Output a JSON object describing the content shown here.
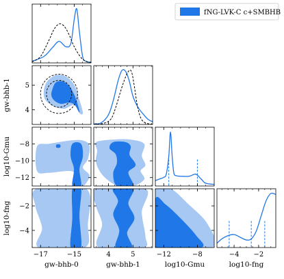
{
  "chart_data": {
    "type": "corner",
    "parameters": [
      "gw-bhb-0",
      "gw-bhb-1",
      "log10-Gmu",
      "log10-fng"
    ],
    "axis_labels": {
      "x": [
        "gw-bhb-0",
        "gw-bhb-1",
        "log10-Gmu",
        "log10-fng"
      ],
      "y": [
        "gw-bhb-1",
        "log10-Gmu",
        "log10-fng"
      ]
    },
    "ranges": [
      [
        -17.5,
        -14.0
      ],
      [
        3.4,
        5.8
      ],
      [
        -13.0,
        -6.0
      ],
      [
        -5.4,
        -0.6
      ]
    ],
    "ticks": [
      [
        -17,
        -15
      ],
      [
        4,
        5
      ],
      [
        -12,
        -8
      ],
      [
        -4,
        -2
      ]
    ],
    "y_ticks": [
      [
        4,
        5
      ],
      [
        -8,
        -10,
        -12
      ],
      [
        -2,
        -4
      ]
    ],
    "legend": {
      "label": "fNG-LVK-C c+SMBHB",
      "color": "#1f77e8",
      "position": "top-right"
    },
    "colors": {
      "primary": "#1f77e8",
      "light": "#a6c8f2",
      "reference": "#000000"
    },
    "marginals": [
      {
        "param": "gw-bhb-0",
        "series": [
          {
            "name": "fNG-LVK-C c+SMBHB",
            "style": "solid",
            "x": [
              -17.5,
              -16.8,
              -16.3,
              -15.9,
              -15.5,
              -15.2,
              -15.0,
              -14.85,
              -14.7,
              -14.5,
              -14.3,
              -14.0
            ],
            "y": [
              0.03,
              0.12,
              0.28,
              0.4,
              0.3,
              0.36,
              0.8,
              1.0,
              0.6,
              0.12,
              0.03,
              0.01
            ]
          },
          {
            "style": "dashed",
            "x": [
              -17.5,
              -17.0,
              -16.5,
              -16.2,
              -15.9,
              -15.6,
              -15.3,
              -15.0,
              -14.6,
              -14.3,
              -14.0
            ],
            "y": [
              0.02,
              0.12,
              0.42,
              0.62,
              0.72,
              0.68,
              0.52,
              0.3,
              0.1,
              0.03,
              0.01
            ]
          }
        ]
      },
      {
        "param": "gw-bhb-1",
        "series": [
          {
            "name": "fNG-LVK-C c+SMBHB",
            "style": "solid",
            "x": [
              3.4,
              3.7,
              4.0,
              4.2,
              4.4,
              4.55,
              4.7,
              4.85,
              5.0,
              5.2,
              5.4,
              5.6,
              5.8
            ],
            "y": [
              0.01,
              0.03,
              0.18,
              0.45,
              0.82,
              1.0,
              0.98,
              0.8,
              0.52,
              0.32,
              0.2,
              0.1,
              0.05
            ]
          },
          {
            "style": "dashed",
            "x": [
              3.4,
              3.8,
              4.1,
              4.3,
              4.5,
              4.7,
              4.85,
              4.95,
              5.05,
              5.2,
              5.4,
              5.8
            ],
            "y": [
              0.0,
              0.02,
              0.1,
              0.32,
              0.62,
              0.88,
              1.0,
              0.96,
              0.72,
              0.3,
              0.06,
              0.0
            ]
          }
        ]
      },
      {
        "param": "log10-Gmu",
        "series": [
          {
            "name": "fNG-LVK-C c+SMBHB",
            "style": "solid",
            "x": [
              -13.0,
              -12.5,
              -12.0,
              -11.7,
              -11.4,
              -11.2,
              -11.0,
              -10.8,
              -10.5,
              -10.0,
              -9.0,
              -8.3,
              -8.0,
              -7.5,
              -7.0,
              -6.0
            ],
            "y": [
              0.1,
              0.13,
              0.16,
              0.22,
              0.55,
              1.0,
              0.55,
              0.24,
              0.19,
              0.18,
              0.18,
              0.22,
              0.2,
              0.12,
              0.05,
              0.03
            ]
          },
          {
            "name": "",
            "style": "intervals",
            "x": [
              -11.4,
              -8.0
            ],
            "y": []
          }
        ]
      },
      {
        "param": "log10-fng",
        "series": [
          {
            "name": "fNG-LVK-C c+SMBHB",
            "style": "solid",
            "x": [
              -5.4,
              -5.0,
              -4.5,
              -4.0,
              -3.5,
              -3.0,
              -2.6,
              -2.2,
              -1.8,
              -1.4,
              -1.0,
              -0.6
            ],
            "y": [
              0.08,
              0.16,
              0.22,
              0.24,
              0.19,
              0.14,
              0.16,
              0.3,
              0.58,
              0.86,
              1.0,
              0.98
            ]
          },
          {
            "name": "",
            "style": "intervals",
            "x": [
              -4.4,
              -2.6,
              -1.5
            ],
            "y": []
          }
        ]
      }
    ],
    "contours": [
      {
        "x": "gw-bhb-0",
        "y": "gw-bhb-1",
        "regions_95": [
          [
            [
              -16.8,
              4.75
            ],
            [
              -16.6,
              5.15
            ],
            [
              -16.1,
              5.4
            ],
            [
              -15.5,
              5.35
            ],
            [
              -15.0,
              5.0
            ],
            [
              -14.75,
              4.5
            ],
            [
              -14.5,
              3.9
            ],
            [
              -14.65,
              3.85
            ],
            [
              -15.0,
              4.2
            ],
            [
              -15.6,
              4.05
            ],
            [
              -16.2,
              4.15
            ],
            [
              -16.7,
              4.4
            ]
          ]
        ],
        "regions_68": [
          [
            [
              -16.3,
              4.8
            ],
            [
              -16.1,
              5.1
            ],
            [
              -15.7,
              5.15
            ],
            [
              -15.3,
              4.95
            ],
            [
              -15.0,
              4.6
            ],
            [
              -14.8,
              4.2
            ],
            [
              -14.7,
              3.9
            ],
            [
              -14.95,
              4.2
            ],
            [
              -15.3,
              4.3
            ],
            [
              -15.8,
              4.25
            ],
            [
              -16.2,
              4.4
            ],
            [
              -16.35,
              4.6
            ]
          ]
        ],
        "reference_68": {
          "center": [
            -15.9,
            4.65
          ],
          "radii": [
            0.75,
            0.55
          ]
        },
        "reference_95": {
          "center": [
            -15.9,
            4.65
          ],
          "radii": [
            1.1,
            0.8
          ]
        }
      },
      {
        "x": "gw-bhb-0",
        "y": "log10-Gmu",
        "regions_95": [
          [
            [
              -17.2,
              -8.3
            ],
            [
              -16.5,
              -8.0
            ],
            [
              -15.2,
              -7.6
            ],
            [
              -14.5,
              -7.6
            ],
            [
              -14.1,
              -8.2
            ],
            [
              -14.2,
              -9.8
            ],
            [
              -14.5,
              -10.8
            ],
            [
              -14.1,
              -11.8
            ],
            [
              -14.5,
              -13.0
            ],
            [
              -14.8,
              -12.0
            ],
            [
              -15.2,
              -11.2
            ],
            [
              -16.5,
              -11.4
            ],
            [
              -17.2,
              -11.2
            ]
          ]
        ],
        "regions_68": [
          [
            [
              -15.1,
              -8.0
            ],
            [
              -14.6,
              -8.0
            ],
            [
              -14.5,
              -9.5
            ],
            [
              -14.7,
              -11.0
            ],
            [
              -14.6,
              -13.0
            ],
            [
              -15.1,
              -13.0
            ],
            [
              -15.0,
              -11.0
            ],
            [
              -15.2,
              -9.5
            ]
          ],
          [
            [
              -16.05,
              -8.1
            ],
            [
              -15.85,
              -8.1
            ],
            [
              -15.85,
              -8.4
            ],
            [
              -16.05,
              -8.4
            ]
          ]
        ]
      },
      {
        "x": "gw-bhb-1",
        "y": "log10-Gmu",
        "regions_95": [
          [
            [
              3.5,
              -7.8
            ],
            [
              4.2,
              -7.5
            ],
            [
              4.9,
              -7.5
            ],
            [
              5.45,
              -8.0
            ],
            [
              5.35,
              -9.4
            ],
            [
              5.5,
              -10.5
            ],
            [
              5.3,
              -11.2
            ],
            [
              5.45,
              -12.2
            ],
            [
              5.0,
              -13.0
            ],
            [
              4.4,
              -13.0
            ],
            [
              3.8,
              -11.8
            ],
            [
              3.5,
              -10.2
            ],
            [
              3.55,
              -8.8
            ]
          ]
        ],
        "regions_68": [
          [
            [
              4.2,
              -7.8
            ],
            [
              4.7,
              -7.8
            ],
            [
              4.9,
              -8.3
            ],
            [
              4.85,
              -9.3
            ],
            [
              5.1,
              -10.5
            ],
            [
              4.8,
              -11.4
            ],
            [
              5.0,
              -13.0
            ],
            [
              4.35,
              -13.0
            ],
            [
              4.2,
              -11.5
            ],
            [
              4.35,
              -10.3
            ],
            [
              4.3,
              -9.2
            ],
            [
              4.05,
              -8.5
            ]
          ]
        ]
      },
      {
        "x": "gw-bhb-0",
        "y": "log10-fng",
        "regions_95": [
          [
            [
              -17.2,
              -0.6
            ],
            [
              -14.3,
              -0.6
            ],
            [
              -14.2,
              -3.5
            ],
            [
              -14.4,
              -5.4
            ],
            [
              -17.1,
              -5.4
            ],
            [
              -16.9,
              -3.8
            ],
            [
              -17.3,
              -2.0
            ]
          ]
        ],
        "regions_68": [
          [
            [
              -15.1,
              -0.6
            ],
            [
              -14.6,
              -0.6
            ],
            [
              -14.7,
              -2.8
            ],
            [
              -14.6,
              -5.4
            ],
            [
              -15.2,
              -5.4
            ],
            [
              -15.1,
              -3.0
            ]
          ]
        ]
      },
      {
        "x": "gw-bhb-1",
        "y": "log10-fng",
        "regions_95": [
          [
            [
              3.5,
              -0.6
            ],
            [
              5.5,
              -0.6
            ],
            [
              5.35,
              -2.5
            ],
            [
              5.5,
              -4.5
            ],
            [
              5.4,
              -5.4
            ],
            [
              3.6,
              -5.4
            ],
            [
              3.75,
              -3.5
            ],
            [
              3.5,
              -2.0
            ]
          ]
        ],
        "regions_68": [
          [
            [
              4.2,
              -0.6
            ],
            [
              5.0,
              -0.6
            ],
            [
              4.8,
              -1.8
            ],
            [
              5.05,
              -3.0
            ],
            [
              4.75,
              -4.2
            ],
            [
              4.95,
              -5.4
            ],
            [
              4.3,
              -5.4
            ],
            [
              4.45,
              -4.0
            ],
            [
              4.2,
              -2.7
            ],
            [
              4.4,
              -1.6
            ]
          ]
        ]
      },
      {
        "x": "log10-Gmu",
        "y": "log10-fng",
        "regions_95": [
          [
            [
              -13.0,
              -0.6
            ],
            [
              -11.2,
              -0.6
            ],
            [
              -9.2,
              -1.8
            ],
            [
              -6.8,
              -3.5
            ],
            [
              -6.3,
              -5.4
            ],
            [
              -13.0,
              -5.4
            ]
          ]
        ],
        "regions_68": [
          [
            [
              -13.0,
              -1.5
            ],
            [
              -11.8,
              -1.9
            ],
            [
              -10.2,
              -2.9
            ],
            [
              -8.2,
              -4.4
            ],
            [
              -7.6,
              -5.4
            ],
            [
              -13.0,
              -5.4
            ]
          ]
        ]
      }
    ]
  }
}
